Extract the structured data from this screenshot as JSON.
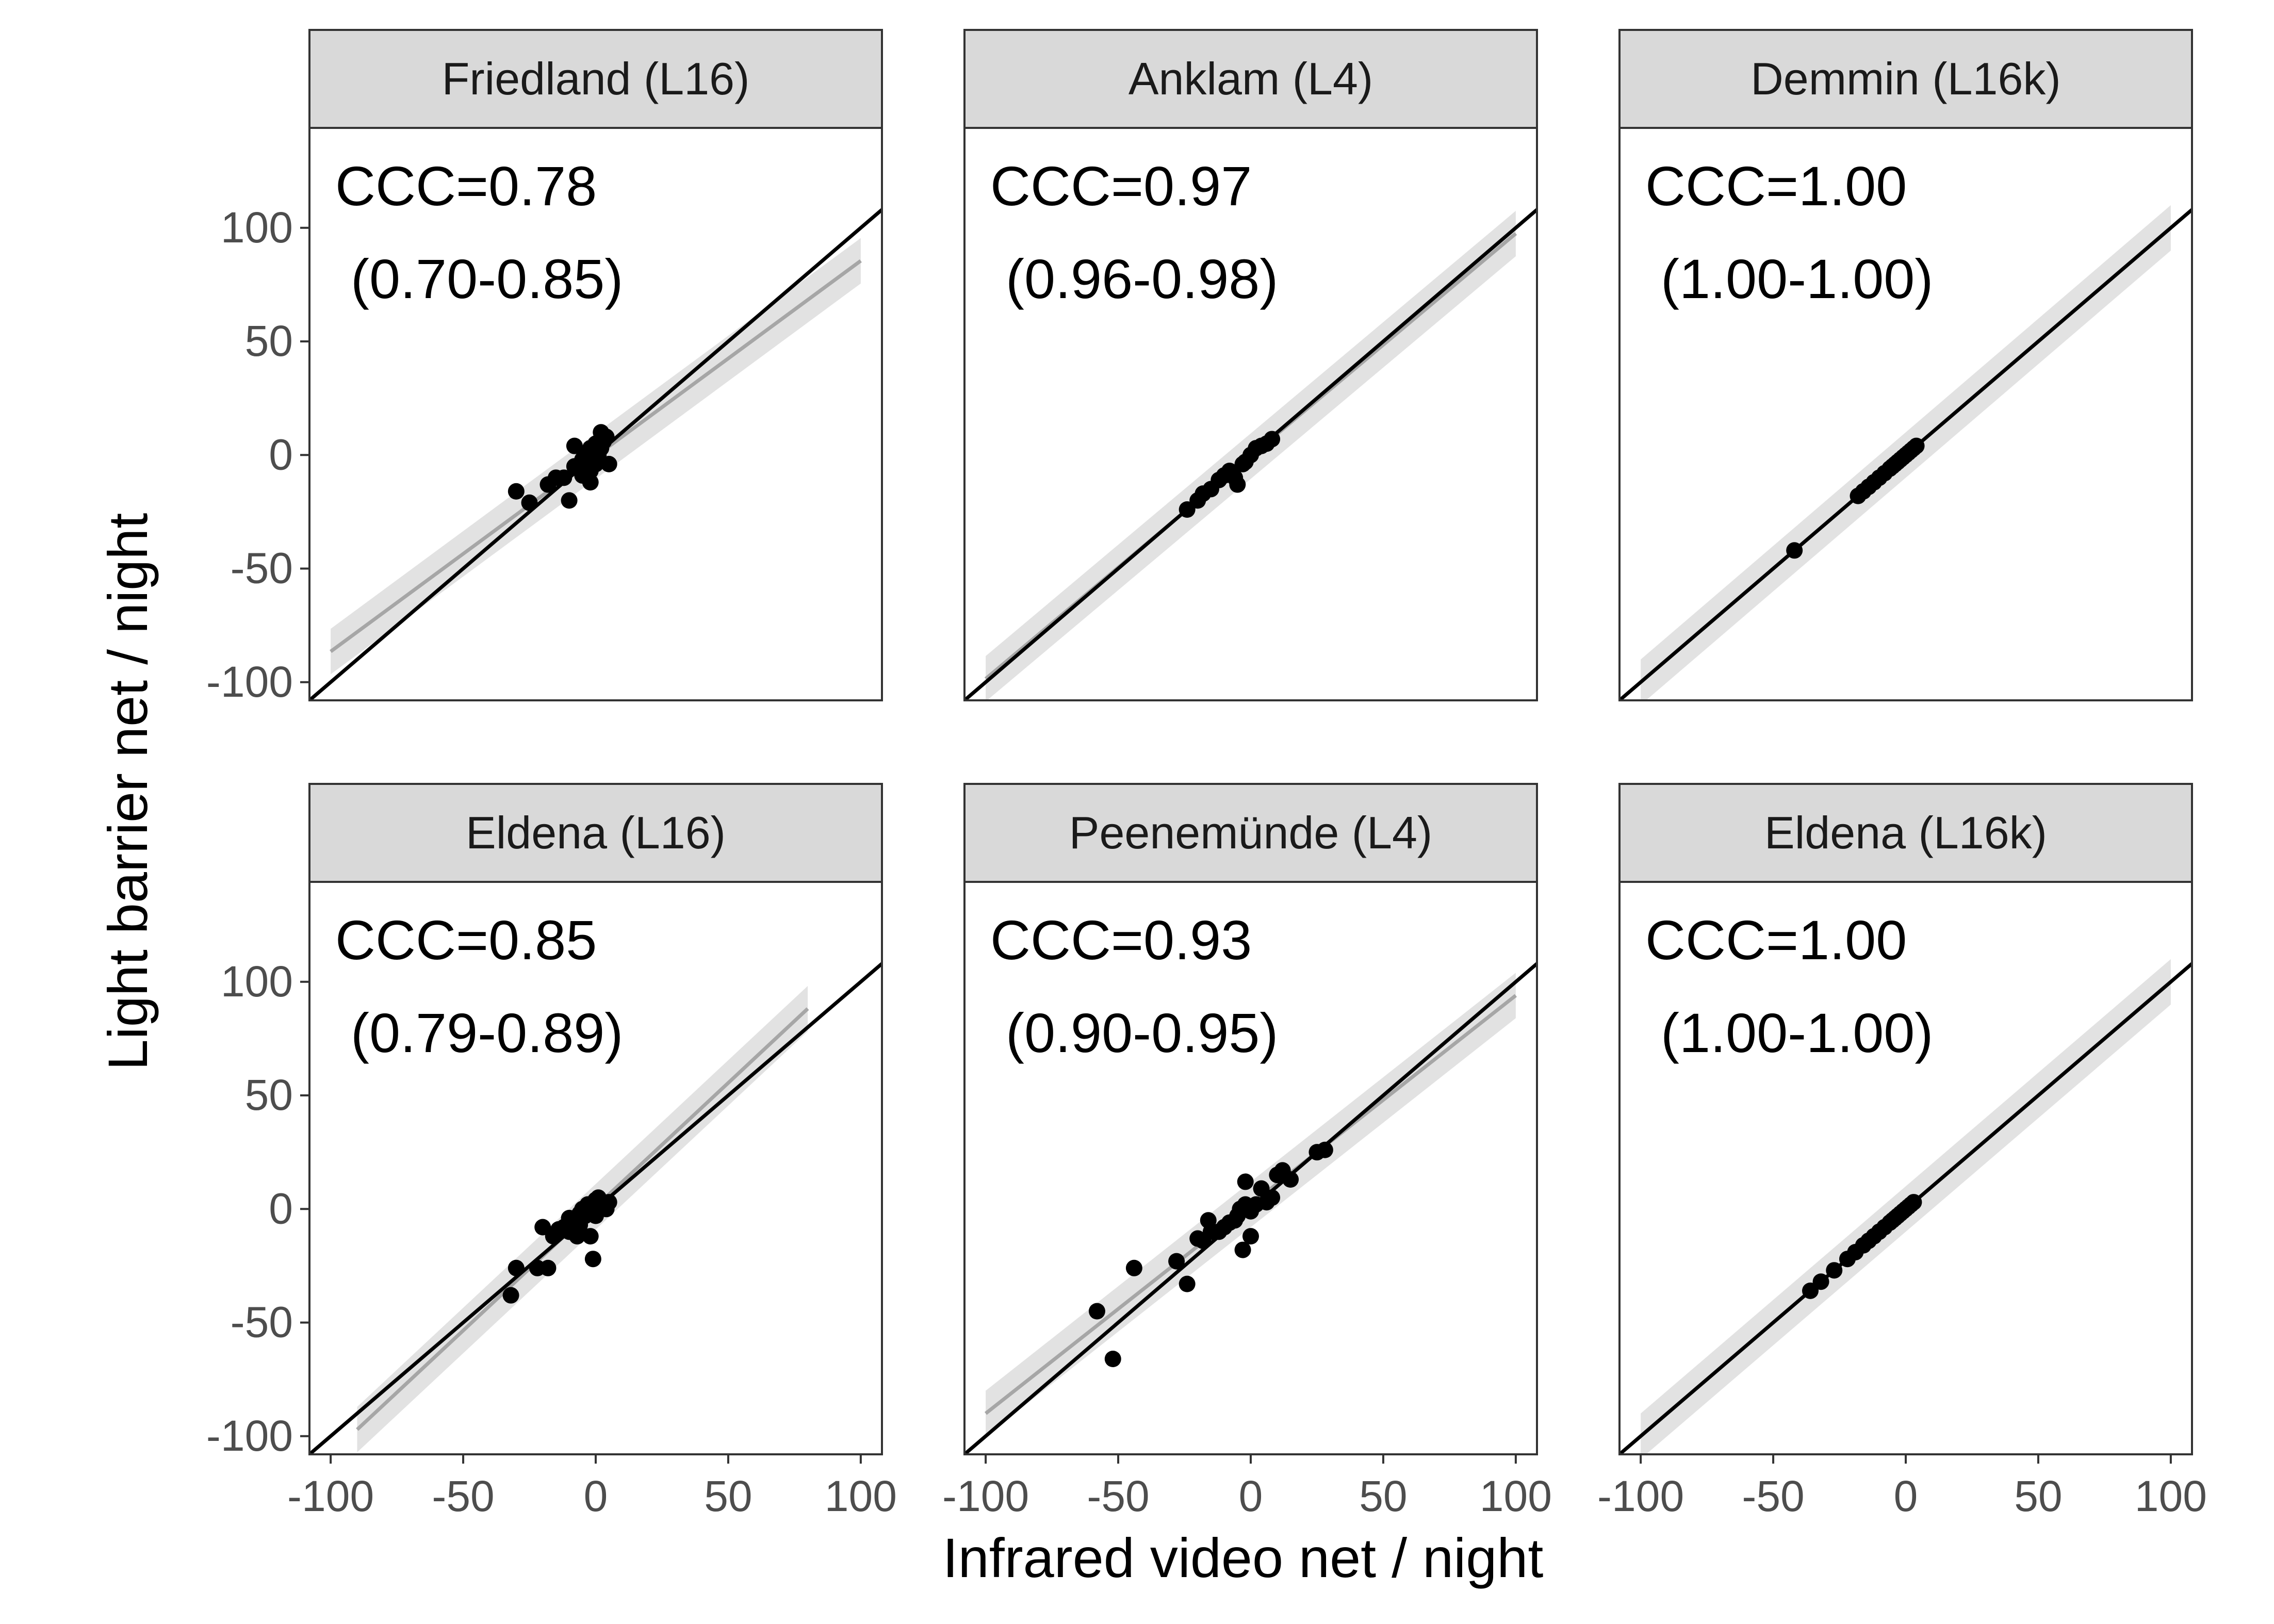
{
  "chart_data": {
    "type": "scatter",
    "xlabel": "Infrared video net / night",
    "ylabel": "Light barrier net / night",
    "xlim": [
      -108,
      108
    ],
    "ylim": [
      -108,
      144
    ],
    "x_ticks": [
      "-100",
      "-50",
      "0",
      "50",
      "100"
    ],
    "y_ticks": [
      "-100",
      "-50",
      "0",
      "50",
      "100"
    ],
    "panels": [
      {
        "title": "Friedland (L16)",
        "ccc": "CCC=0.78",
        "ci": " (0.70-0.85)",
        "fit": {
          "slope": 0.86,
          "intercept": -0.5,
          "x_range": [
            -100,
            100
          ]
        },
        "x": [
          -30,
          -25,
          -18,
          -15,
          -12,
          -10,
          -8,
          -8,
          -6,
          -5,
          -5,
          -4,
          -3,
          -2,
          -2,
          -1,
          0,
          0,
          1,
          1,
          2,
          2,
          3,
          4,
          5,
          -2,
          0
        ],
        "y": [
          -16,
          -21,
          -13,
          -10,
          -10,
          -20,
          -5,
          4,
          -5,
          -2,
          -9,
          0,
          -3,
          -7,
          3,
          1,
          -4,
          5,
          0,
          -2,
          10,
          3,
          6,
          8,
          -4,
          -12,
          2
        ]
      },
      {
        "title": "Anklam (L4)",
        "ccc": "CCC=0.97",
        "ci": " (0.96-0.98)",
        "fit": {
          "slope": 0.98,
          "intercept": -0.5,
          "x_range": [
            -100,
            100
          ]
        },
        "x": [
          -24,
          -20,
          -18,
          -15,
          -12,
          -10,
          -8,
          -6,
          -5,
          -3,
          -2,
          0,
          2,
          4,
          6,
          8
        ],
        "y": [
          -24,
          -20,
          -17,
          -15,
          -11,
          -9,
          -7,
          -10,
          -13,
          -4,
          -3,
          0,
          3,
          4,
          5,
          7
        ]
      },
      {
        "title": "Demmin (L16k)",
        "ccc": "CCC=1.00",
        "ci": " (1.00-1.00)",
        "fit": {
          "slope": 1.0,
          "intercept": 0.0,
          "x_range": [
            -100,
            100
          ]
        },
        "x": [
          -42,
          -18,
          -16,
          -14,
          -12,
          -10,
          -8,
          -6,
          -5,
          -4,
          -3,
          -2,
          -1,
          0,
          1,
          2,
          3,
          4
        ],
        "y": [
          -42,
          -18,
          -16,
          -14,
          -12,
          -10,
          -8,
          -6,
          -5,
          -4,
          -3,
          -2,
          -1,
          0,
          1,
          2,
          3,
          4
        ]
      },
      {
        "title": "Eldena (L16)",
        "ccc": "CCC=0.85",
        "ci": " (0.79-0.89)",
        "fit": {
          "slope": 1.09,
          "intercept": 1.0,
          "x_range": [
            -90,
            80
          ]
        },
        "x": [
          -32,
          -30,
          -22,
          -20,
          -18,
          -16,
          -14,
          -12,
          -10,
          -8,
          -7,
          -6,
          -5,
          -4,
          -3,
          -2,
          -1,
          0,
          0,
          1,
          2,
          3,
          4,
          5,
          -2,
          -6,
          -10,
          1
        ],
        "y": [
          -38,
          -26,
          -26,
          -8,
          -26,
          -12,
          -9,
          -8,
          -10,
          -4,
          -12,
          -2,
          0,
          -3,
          2,
          1,
          -22,
          4,
          -3,
          0,
          3,
          2,
          0,
          3,
          -12,
          -7,
          -4,
          5
        ]
      },
      {
        "title": "Peenemünde (L4)",
        "ccc": "CCC=0.93",
        "ci": " (0.90-0.95)",
        "fit": {
          "slope": 0.92,
          "intercept": 2.0,
          "x_range": [
            -100,
            100
          ]
        },
        "x": [
          -58,
          -52,
          -44,
          -28,
          -24,
          -20,
          -18,
          -16,
          -15,
          -12,
          -10,
          -8,
          -6,
          -4,
          -3,
          -2,
          0,
          2,
          4,
          6,
          8,
          10,
          12,
          15,
          25,
          28,
          0,
          -5,
          -2
        ],
        "y": [
          -45,
          -66,
          -26,
          -23,
          -33,
          -13,
          -14,
          -5,
          -10,
          -10,
          -8,
          -6,
          -5,
          0,
          -18,
          12,
          -1,
          2,
          9,
          3,
          5,
          15,
          17,
          13,
          25,
          26,
          -12,
          -3,
          2
        ]
      },
      {
        "title": "Eldena (L16k)",
        "ccc": "CCC=1.00",
        "ci": " (1.00-1.00)",
        "fit": {
          "slope": 1.0,
          "intercept": 0.0,
          "x_range": [
            -100,
            100
          ]
        },
        "x": [
          -36,
          -32,
          -27,
          -22,
          -19,
          -16,
          -14,
          -12,
          -10,
          -8,
          -6,
          -5,
          -4,
          -3,
          -2,
          -1,
          0,
          1,
          2,
          3
        ],
        "y": [
          -36,
          -32,
          -27,
          -22,
          -19,
          -16,
          -14,
          -12,
          -10,
          -8,
          -6,
          -5,
          -4,
          -3,
          -2,
          -1,
          0,
          1,
          2,
          3
        ]
      }
    ]
  }
}
